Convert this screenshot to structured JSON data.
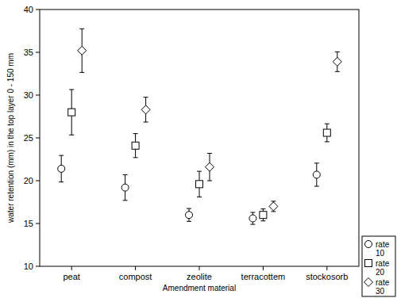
{
  "chart_data": {
    "type": "scatter",
    "x_label": "Amendment material",
    "y_label": "water retention (mm) in the top layer 0 - 150 mm",
    "categories": [
      "peat",
      "compost",
      "zeolite",
      "terracottem",
      "stockosorb"
    ],
    "series": [
      {
        "name": "rate 10",
        "color": "#000000",
        "marker": "circle",
        "values": [
          21.4,
          19.2,
          16.0,
          15.6,
          20.7
        ],
        "errors": [
          1.55,
          1.5,
          0.75,
          0.7,
          1.35
        ]
      },
      {
        "name": "rate 20",
        "color": "#000000",
        "marker": "square",
        "values": [
          28.0,
          24.1,
          19.6,
          16.0,
          25.6
        ],
        "errors": [
          2.65,
          1.4,
          1.5,
          0.7,
          1.05
        ]
      },
      {
        "name": "rate 30",
        "color": "#000000",
        "marker": "diamond",
        "values": [
          35.2,
          28.3,
          21.6,
          17.0,
          33.9
        ],
        "errors": [
          2.55,
          1.45,
          1.6,
          0.6,
          1.15
        ]
      }
    ],
    "ylim": [
      10,
      40
    ],
    "yticks": [
      10,
      15,
      20,
      25,
      30,
      35,
      40
    ],
    "grid": false,
    "legend": "right"
  }
}
